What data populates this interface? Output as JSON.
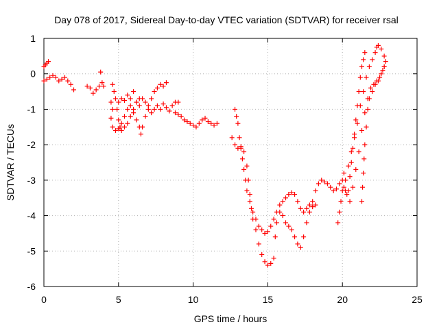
{
  "chart_data": {
    "type": "scatter",
    "title": "Day 078 of 2017, Sidereal Day-to-day VTEC variation (SDTVAR) for receiver rsal",
    "xlabel": "GPS time / hours",
    "ylabel": "SDTVAR / TECUs",
    "xlim": [
      0,
      25
    ],
    "ylim": [
      -6,
      1
    ],
    "xticks": [
      0,
      5,
      10,
      15,
      20,
      25
    ],
    "yticks": [
      1,
      0,
      -1,
      -2,
      -3,
      -4,
      -5,
      -6
    ],
    "grid": true,
    "marker": "plus",
    "color": "#ff0000",
    "series": [
      {
        "points": [
          [
            0.0,
            0.2
          ],
          [
            0.1,
            0.25
          ],
          [
            0.2,
            0.3
          ],
          [
            0.3,
            0.35
          ],
          [
            0.0,
            -0.2
          ],
          [
            0.2,
            -0.15
          ],
          [
            0.4,
            -0.1
          ],
          [
            0.6,
            -0.05
          ],
          [
            0.8,
            -0.1
          ],
          [
            1.0,
            -0.2
          ],
          [
            1.2,
            -0.15
          ],
          [
            1.4,
            -0.1
          ],
          [
            1.6,
            -0.2
          ],
          [
            1.8,
            -0.3
          ],
          [
            2.0,
            -0.45
          ],
          [
            2.9,
            -0.35
          ],
          [
            3.1,
            -0.4
          ],
          [
            3.3,
            -0.55
          ],
          [
            3.5,
            -0.45
          ],
          [
            3.7,
            -0.35
          ],
          [
            3.8,
            0.05
          ],
          [
            3.9,
            -0.25
          ],
          [
            4.0,
            -0.35
          ],
          [
            4.6,
            -0.3
          ],
          [
            4.7,
            -0.5
          ],
          [
            4.8,
            -0.7
          ],
          [
            4.9,
            -1.0
          ],
          [
            5.0,
            -1.3
          ],
          [
            5.1,
            -1.5
          ],
          [
            5.2,
            -1.6
          ],
          [
            5.4,
            -1.5
          ],
          [
            5.6,
            -1.4
          ],
          [
            5.8,
            -1.2
          ],
          [
            6.0,
            -1.0
          ],
          [
            6.2,
            -0.8
          ],
          [
            6.4,
            -0.7
          ],
          [
            4.5,
            -0.8
          ],
          [
            4.6,
            -1.0
          ],
          [
            4.5,
            -1.25
          ],
          [
            4.6,
            -1.5
          ],
          [
            4.8,
            -1.6
          ],
          [
            5.0,
            -1.55
          ],
          [
            5.2,
            -1.4
          ],
          [
            5.4,
            -1.2
          ],
          [
            5.6,
            -1.0
          ],
          [
            5.8,
            -0.9
          ],
          [
            6.0,
            -1.1
          ],
          [
            6.2,
            -1.3
          ],
          [
            6.4,
            -1.5
          ],
          [
            6.5,
            -1.7
          ],
          [
            6.6,
            -1.5
          ],
          [
            6.8,
            -1.2
          ],
          [
            7.0,
            -0.9
          ],
          [
            7.2,
            -0.7
          ],
          [
            7.4,
            -0.5
          ],
          [
            7.6,
            -0.4
          ],
          [
            7.8,
            -0.3
          ],
          [
            8.0,
            -0.35
          ],
          [
            8.2,
            -0.25
          ],
          [
            5.0,
            -0.8
          ],
          [
            5.2,
            -0.7
          ],
          [
            5.4,
            -0.75
          ],
          [
            5.6,
            -0.6
          ],
          [
            5.8,
            -0.7
          ],
          [
            6.0,
            -0.5
          ],
          [
            6.2,
            -0.8
          ],
          [
            6.4,
            -0.9
          ],
          [
            6.6,
            -0.7
          ],
          [
            6.8,
            -0.8
          ],
          [
            7.0,
            -1.0
          ],
          [
            7.2,
            -1.1
          ],
          [
            7.4,
            -1.0
          ],
          [
            7.6,
            -0.9
          ],
          [
            7.8,
            -1.0
          ],
          [
            8.0,
            -0.85
          ],
          [
            8.2,
            -0.95
          ],
          [
            8.4,
            -1.05
          ],
          [
            8.6,
            -0.9
          ],
          [
            8.8,
            -0.8
          ],
          [
            9.0,
            -0.8
          ],
          [
            8.8,
            -1.1
          ],
          [
            9.0,
            -1.15
          ],
          [
            9.2,
            -1.2
          ],
          [
            9.4,
            -1.3
          ],
          [
            9.6,
            -1.35
          ],
          [
            9.8,
            -1.4
          ],
          [
            10.0,
            -1.45
          ],
          [
            10.2,
            -1.5
          ],
          [
            10.4,
            -1.4
          ],
          [
            10.6,
            -1.3
          ],
          [
            10.8,
            -1.25
          ],
          [
            11.0,
            -1.35
          ],
          [
            11.2,
            -1.4
          ],
          [
            11.4,
            -1.45
          ],
          [
            11.6,
            -1.4
          ],
          [
            12.8,
            -1.0
          ],
          [
            12.9,
            -1.2
          ],
          [
            13.0,
            -1.4
          ],
          [
            13.1,
            -1.8
          ],
          [
            13.2,
            -2.1
          ],
          [
            13.3,
            -2.4
          ],
          [
            13.4,
            -2.7
          ],
          [
            13.5,
            -3.0
          ],
          [
            13.6,
            -3.3
          ],
          [
            13.8,
            -3.6
          ],
          [
            14.0,
            -3.9
          ],
          [
            14.2,
            -4.1
          ],
          [
            14.4,
            -4.3
          ],
          [
            14.6,
            -4.4
          ],
          [
            14.8,
            -4.5
          ],
          [
            15.0,
            -4.45
          ],
          [
            15.2,
            -4.3
          ],
          [
            15.4,
            -4.1
          ],
          [
            15.6,
            -3.9
          ],
          [
            15.8,
            -3.7
          ],
          [
            16.0,
            -3.6
          ],
          [
            16.2,
            -3.5
          ],
          [
            16.4,
            -3.4
          ],
          [
            16.6,
            -3.35
          ],
          [
            16.8,
            -3.4
          ],
          [
            17.0,
            -3.6
          ],
          [
            17.2,
            -3.8
          ],
          [
            17.4,
            -3.9
          ],
          [
            17.6,
            -3.8
          ],
          [
            17.8,
            -3.7
          ],
          [
            18.0,
            -3.75
          ],
          [
            18.2,
            -3.7
          ],
          [
            12.6,
            -1.8
          ],
          [
            12.8,
            -2.0
          ],
          [
            13.0,
            -2.1
          ],
          [
            13.2,
            -2.05
          ],
          [
            13.4,
            -2.2
          ],
          [
            13.6,
            -2.6
          ],
          [
            13.7,
            -3.0
          ],
          [
            13.8,
            -3.4
          ],
          [
            13.9,
            -3.8
          ],
          [
            14.0,
            -4.1
          ],
          [
            14.2,
            -4.4
          ],
          [
            14.4,
            -4.8
          ],
          [
            14.6,
            -5.1
          ],
          [
            14.8,
            -5.3
          ],
          [
            15.0,
            -5.4
          ],
          [
            15.2,
            -5.35
          ],
          [
            15.4,
            -5.2
          ],
          [
            15.5,
            -4.6
          ],
          [
            15.6,
            -4.2
          ],
          [
            15.8,
            -3.9
          ],
          [
            16.0,
            -4.0
          ],
          [
            16.2,
            -4.2
          ],
          [
            16.4,
            -4.3
          ],
          [
            16.6,
            -4.4
          ],
          [
            16.8,
            -4.6
          ],
          [
            17.0,
            -4.8
          ],
          [
            17.2,
            -4.9
          ],
          [
            17.4,
            -4.6
          ],
          [
            17.6,
            -4.2
          ],
          [
            17.8,
            -3.9
          ],
          [
            18.0,
            -3.6
          ],
          [
            18.2,
            -3.3
          ],
          [
            18.4,
            -3.1
          ],
          [
            18.6,
            -3.0
          ],
          [
            18.8,
            -3.05
          ],
          [
            19.0,
            -3.1
          ],
          [
            19.2,
            -3.2
          ],
          [
            19.4,
            -3.3
          ],
          [
            19.6,
            -3.25
          ],
          [
            19.8,
            -3.1
          ],
          [
            20.0,
            -3.0
          ],
          [
            20.1,
            -2.8
          ],
          [
            19.7,
            -4.2
          ],
          [
            19.8,
            -3.9
          ],
          [
            19.9,
            -3.6
          ],
          [
            20.0,
            -3.3
          ],
          [
            20.1,
            -3.2
          ],
          [
            20.2,
            -3.3
          ],
          [
            20.3,
            -3.4
          ],
          [
            20.4,
            -3.3
          ],
          [
            20.5,
            -2.9
          ],
          [
            20.6,
            -2.5
          ],
          [
            20.7,
            -2.1
          ],
          [
            20.8,
            -1.7
          ],
          [
            20.9,
            -1.3
          ],
          [
            21.0,
            -0.9
          ],
          [
            21.1,
            -0.5
          ],
          [
            21.2,
            -0.1
          ],
          [
            21.3,
            0.2
          ],
          [
            21.4,
            0.4
          ],
          [
            21.5,
            0.6
          ],
          [
            20.2,
            -3.0
          ],
          [
            20.4,
            -2.6
          ],
          [
            20.6,
            -2.2
          ],
          [
            20.8,
            -1.8
          ],
          [
            21.0,
            -1.4
          ],
          [
            21.2,
            -0.9
          ],
          [
            21.4,
            -0.5
          ],
          [
            21.6,
            -0.1
          ],
          [
            21.8,
            0.2
          ],
          [
            22.0,
            0.4
          ],
          [
            22.2,
            0.6
          ],
          [
            22.3,
            0.75
          ],
          [
            22.4,
            0.8
          ],
          [
            22.6,
            0.7
          ],
          [
            22.8,
            0.5
          ],
          [
            22.9,
            0.35
          ],
          [
            20.5,
            -3.6
          ],
          [
            20.7,
            -3.2
          ],
          [
            20.9,
            -2.7
          ],
          [
            21.1,
            -2.2
          ],
          [
            21.3,
            -1.6
          ],
          [
            21.5,
            -1.1
          ],
          [
            21.7,
            -0.7
          ],
          [
            21.9,
            -0.4
          ],
          [
            22.1,
            -0.3
          ],
          [
            22.3,
            -0.2
          ],
          [
            22.5,
            -0.1
          ],
          [
            22.7,
            0.1
          ],
          [
            22.8,
            0.2
          ],
          [
            21.3,
            -3.6
          ],
          [
            21.35,
            -3.2
          ],
          [
            21.4,
            -2.8
          ],
          [
            21.45,
            -2.4
          ],
          [
            21.5,
            -2.0
          ],
          [
            21.6,
            -1.5
          ],
          [
            21.7,
            -1.0
          ],
          [
            21.8,
            -0.7
          ],
          [
            22.0,
            -0.5
          ],
          [
            22.2,
            -0.3
          ],
          [
            22.4,
            -0.2
          ],
          [
            22.6,
            0.0
          ],
          [
            22.8,
            0.2
          ]
        ]
      }
    ]
  }
}
